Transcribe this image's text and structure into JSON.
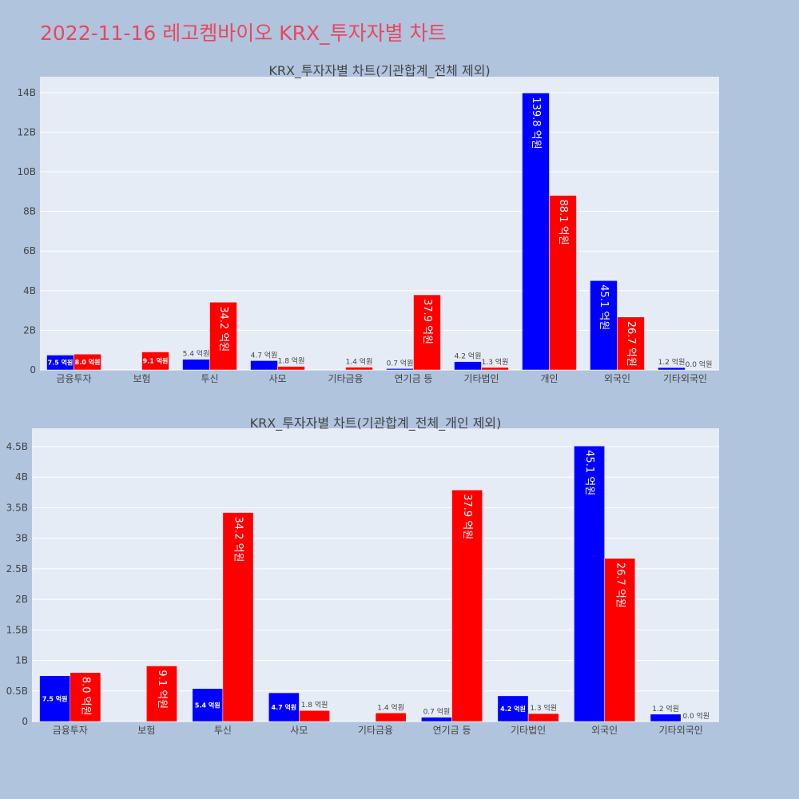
{
  "title": "2022-11-16 레고켐바이오 KRX_투자자별 차트",
  "colors": {
    "background": "#b0c4de",
    "plot_bg": "#e5ecf6",
    "title": "#e8475f",
    "buy": "#0000ff",
    "sell": "#ff0000"
  },
  "chart_data": [
    {
      "type": "bar",
      "barmode": "group",
      "title": "KRX_투자자별 차트(기관합계_전체 제외)",
      "categories": [
        "금융투자",
        "보험",
        "투신",
        "사모",
        "기타금융",
        "연기금 등",
        "기타법인",
        "개인",
        "외국인",
        "기타외국인"
      ],
      "ylim": [
        0,
        14800000000
      ],
      "yticks": [
        0,
        2000000000,
        4000000000,
        6000000000,
        8000000000,
        10000000000,
        12000000000,
        14000000000
      ],
      "ytick_labels": [
        "0",
        "2B",
        "4B",
        "6B",
        "8B",
        "10B",
        "12B",
        "14B"
      ],
      "grid": true,
      "series": [
        {
          "color": "#0000ff",
          "values": [
            750000000,
            0,
            540000000,
            470000000,
            0,
            70000000,
            420000000,
            13980000000,
            4510000000,
            120000000
          ],
          "labels": [
            "7.5 억원",
            "",
            "5.4 억원",
            "4.7 억원",
            "",
            "0.7 억원",
            "4.2 억원",
            "139.8 억원",
            "45.1 억원",
            "1.2 억원"
          ]
        },
        {
          "color": "#ff0000",
          "values": [
            800000000,
            910000000,
            3420000000,
            180000000,
            140000000,
            3790000000,
            130000000,
            8810000000,
            2670000000,
            0
          ],
          "labels": [
            "8.0 억원",
            "9.1 억원",
            "34.2 억원",
            "1.8 억원",
            "1.4 억원",
            "37.9 억원",
            "1.3 억원",
            "88.1 억원",
            "26.7 억원",
            "0.0 억원"
          ]
        }
      ]
    },
    {
      "type": "bar",
      "barmode": "group",
      "title": "KRX_투자자별 차트(기관합계_전체_개인 제외)",
      "categories": [
        "금융투자",
        "보험",
        "투신",
        "사모",
        "기타금융",
        "연기금 등",
        "기타법인",
        "외국인",
        "기타외국인"
      ],
      "ylim": [
        0,
        4800000000
      ],
      "yticks": [
        0,
        500000000,
        1000000000,
        1500000000,
        2000000000,
        2500000000,
        3000000000,
        3500000000,
        4000000000,
        4500000000
      ],
      "ytick_labels": [
        "0",
        "0.5B",
        "1B",
        "1.5B",
        "2B",
        "2.5B",
        "3B",
        "3.5B",
        "4B",
        "4.5B"
      ],
      "grid": true,
      "series": [
        {
          "color": "#0000ff",
          "values": [
            750000000,
            0,
            540000000,
            470000000,
            0,
            70000000,
            420000000,
            4510000000,
            120000000
          ],
          "labels": [
            "7.5 억원",
            "",
            "5.4 억원",
            "4.7 억원",
            "",
            "0.7 억원",
            "4.2 억원",
            "45.1 억원",
            "1.2 억원"
          ]
        },
        {
          "color": "#ff0000",
          "values": [
            800000000,
            910000000,
            3420000000,
            180000000,
            140000000,
            3790000000,
            130000000,
            2670000000,
            0
          ],
          "labels": [
            "8.0 억원",
            "9.1 억원",
            "34.2 억원",
            "1.8 억원",
            "1.4 억원",
            "37.9 억원",
            "1.3 억원",
            "26.7 억원",
            "0.0 억원"
          ]
        }
      ]
    }
  ]
}
